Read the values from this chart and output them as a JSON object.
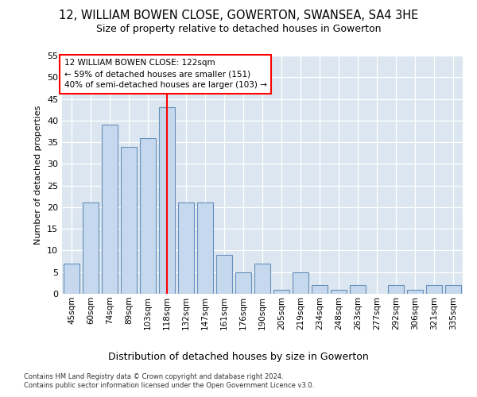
{
  "title1": "12, WILLIAM BOWEN CLOSE, GOWERTON, SWANSEA, SA4 3HE",
  "title2": "Size of property relative to detached houses in Gowerton",
  "xlabel": "Distribution of detached houses by size in Gowerton",
  "ylabel": "Number of detached properties",
  "categories": [
    "45sqm",
    "60sqm",
    "74sqm",
    "89sqm",
    "103sqm",
    "118sqm",
    "132sqm",
    "147sqm",
    "161sqm",
    "176sqm",
    "190sqm",
    "205sqm",
    "219sqm",
    "234sqm",
    "248sqm",
    "263sqm",
    "277sqm",
    "292sqm",
    "306sqm",
    "321sqm",
    "335sqm"
  ],
  "values": [
    7,
    21,
    39,
    34,
    36,
    43,
    21,
    21,
    9,
    5,
    7,
    1,
    5,
    2,
    1,
    2,
    0,
    2,
    1,
    2,
    2
  ],
  "bar_color": "#c5d8ed",
  "bar_edge_color": "#6690bb",
  "property_line_x": 5.5,
  "annotation_line1": "12 WILLIAM BOWEN CLOSE: 122sqm",
  "annotation_line2": "← 59% of detached houses are smaller (151)",
  "annotation_line3": "40% of semi-detached houses are larger (103) →",
  "footer1": "Contains HM Land Registry data © Crown copyright and database right 2024.",
  "footer2": "Contains public sector information licensed under the Open Government Licence v3.0.",
  "ylim": [
    0,
    55
  ],
  "yticks": [
    0,
    5,
    10,
    15,
    20,
    25,
    30,
    35,
    40,
    45,
    50,
    55
  ],
  "fig_bg_color": "#ffffff",
  "plot_bg_color": "#dce6f0"
}
